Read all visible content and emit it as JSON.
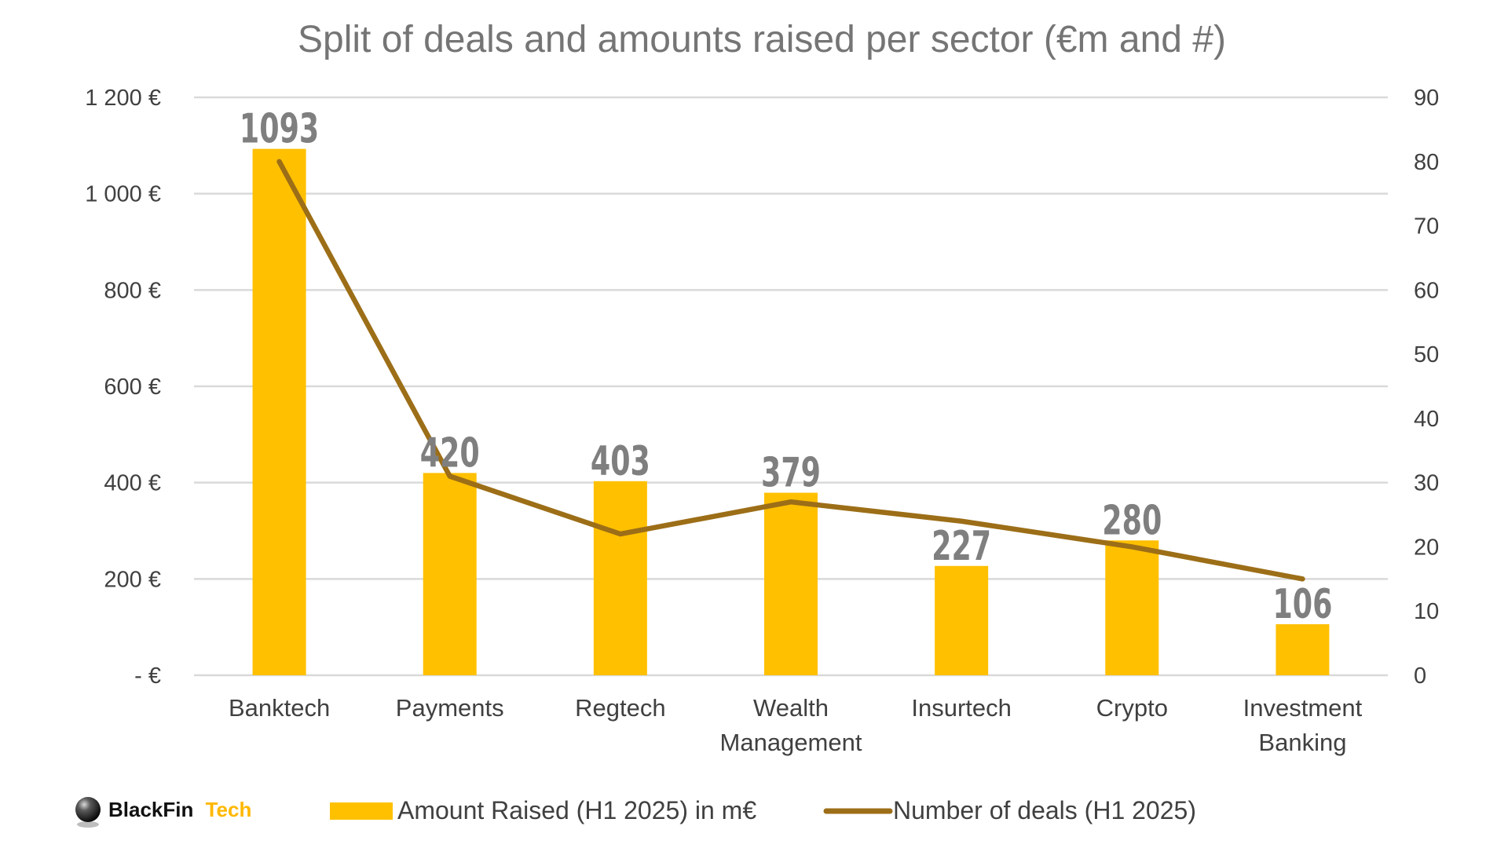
{
  "chart_data": {
    "type": "bar",
    "title": "Split of deals and amounts raised per sector (€m and #)",
    "categories": [
      [
        "Banktech"
      ],
      [
        "Payments"
      ],
      [
        "Regtech"
      ],
      [
        "Wealth",
        "Management"
      ],
      [
        "Insurtech"
      ],
      [
        "Crypto"
      ],
      [
        "Investment",
        "Banking"
      ]
    ],
    "series": [
      {
        "name": "Amount Raised (H1 2025) in m€",
        "type": "bar",
        "axis": "left",
        "color": "#FFC000",
        "values": [
          1093,
          420,
          403,
          379,
          227,
          280,
          106
        ],
        "labels": [
          "1093",
          "420",
          "403",
          "379",
          "227",
          "280",
          "106"
        ]
      },
      {
        "name": "Number of deals (H1 2025)",
        "type": "line",
        "axis": "right",
        "color": "#9C6E17",
        "values": [
          80,
          31,
          22,
          27,
          24,
          20,
          15
        ]
      }
    ],
    "y_left": {
      "range": [
        0,
        1200
      ],
      "ticks": [
        0,
        200,
        400,
        600,
        800,
        1000,
        1200
      ],
      "tick_labels": [
        "-  €",
        "200 €",
        "400 €",
        "600 €",
        "800 €",
        "1 000 €",
        "1 200 €"
      ]
    },
    "y_right": {
      "range": [
        0,
        90
      ],
      "ticks": [
        0,
        10,
        20,
        30,
        40,
        50,
        60,
        70,
        80,
        90
      ],
      "tick_labels": [
        "0",
        "10",
        "20",
        "30",
        "40",
        "50",
        "60",
        "70",
        "80",
        "90"
      ]
    },
    "grid": true,
    "legend_position": "bottom"
  },
  "branding": {
    "logo_name": "BlackFin",
    "logo_suffix": "Tech",
    "logo_suffix_color": "#FFB800",
    "logo_icon": "sphere-logo-icon"
  },
  "colors": {
    "gridline": "#D9D9D9",
    "bar": "#FFC000",
    "line": "#9C6E17"
  }
}
